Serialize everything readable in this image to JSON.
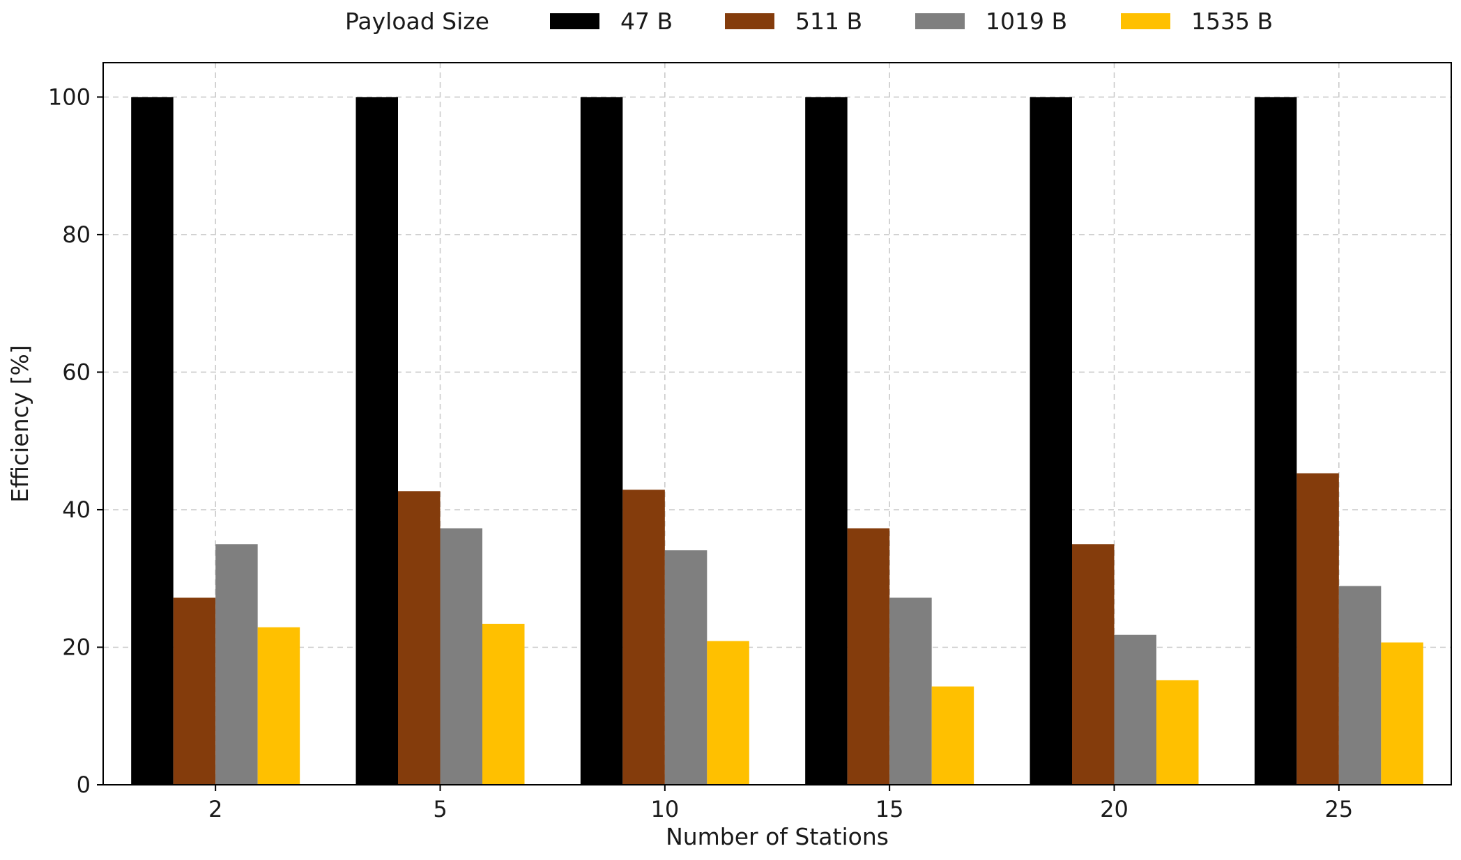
{
  "chart_data": {
    "type": "bar",
    "title": "",
    "xlabel": "Number of Stations",
    "ylabel": "Efficiency [%]",
    "categories": [
      "2",
      "5",
      "10",
      "15",
      "20",
      "25"
    ],
    "ylim": [
      0,
      105
    ],
    "yticks": [
      0,
      20,
      40,
      60,
      80,
      100
    ],
    "grid": true,
    "legend": {
      "title": "Payload Size",
      "placement": "top-center, outside plot, single row"
    },
    "series": [
      {
        "name": "47 B",
        "color": "#000000",
        "values": [
          100,
          100,
          100,
          100,
          100,
          100
        ]
      },
      {
        "name": "511 B",
        "color": "#843c0c",
        "values": [
          27.2,
          42.7,
          42.9,
          37.3,
          35.0,
          45.3
        ]
      },
      {
        "name": "1019 B",
        "color": "#7f7f7f",
        "values": [
          35.0,
          37.3,
          34.1,
          27.2,
          21.8,
          28.9
        ]
      },
      {
        "name": "1535 B",
        "color": "#ffc000",
        "values": [
          22.9,
          23.4,
          20.9,
          14.3,
          15.2,
          20.7
        ]
      }
    ]
  }
}
